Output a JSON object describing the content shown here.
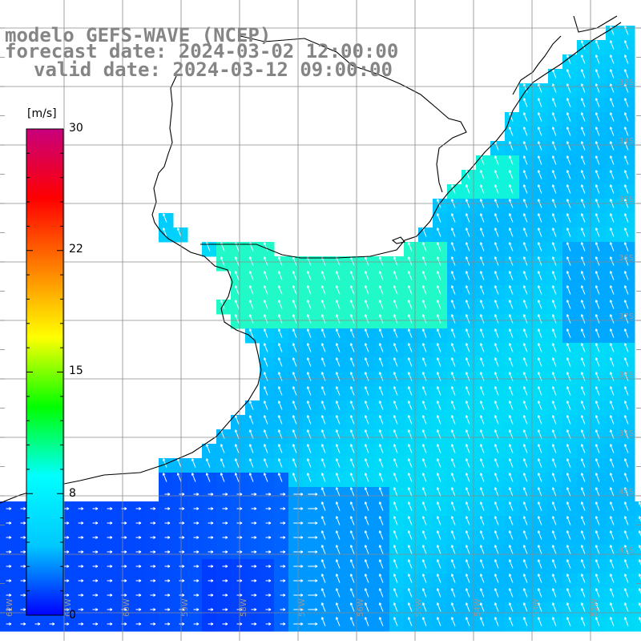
{
  "titles": {
    "model": "modelo GEFS-WAVE (NCEP)",
    "forecast": "forecast date: 2024-03-02 12:00:00",
    "valid": "valid date: 2024-03-12 09:00:00"
  },
  "colorbar": {
    "unit": "[m/s]",
    "ticks": [
      "30",
      "22",
      "15",
      "8",
      "0"
    ],
    "stops": [
      "#0000ff",
      "#00c8ff",
      "#00ffff",
      "#00ff00",
      "#ffff00",
      "#ff8000",
      "#ff0000",
      "#c8007d"
    ]
  },
  "grid": {
    "lat_labels": [
      "33S",
      "34S",
      "35S",
      "36S",
      "37S",
      "38S",
      "39S",
      "40S",
      "41S"
    ],
    "lon_labels": [
      "62W",
      "61W",
      "60W",
      "59W",
      "58W",
      "57W",
      "56W",
      "55W",
      "54W",
      "53W",
      "52W"
    ]
  },
  "colors": {
    "land": "#ffffff",
    "coast": "#000000",
    "grid": "#8a8a8a",
    "arrow": "#ffffff",
    "title": "#858585"
  }
}
